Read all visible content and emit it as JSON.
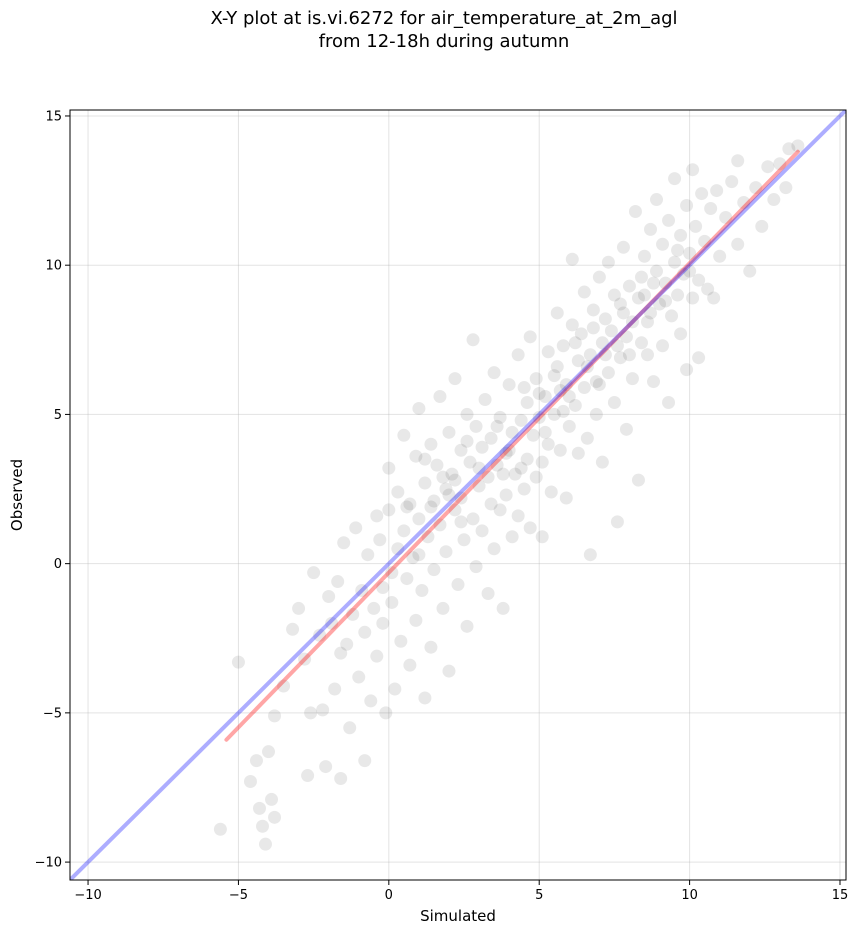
{
  "chart_data": {
    "type": "scatter",
    "title": "X-Y plot at is.vi.6272 for air_temperature_at_2m_agl",
    "subtitle": "from 12-18h during autumn",
    "xlabel": "Simulated",
    "ylabel": "Observed",
    "xlim": [
      -10.6,
      15.2
    ],
    "ylim": [
      -10.6,
      15.2
    ],
    "xticks": [
      -10,
      -5,
      0,
      5,
      10,
      15
    ],
    "yticks": [
      -10,
      -5,
      0,
      5,
      10,
      15
    ],
    "xtick_labels": [
      "−10",
      "−5",
      "0",
      "5",
      "10",
      "15"
    ],
    "ytick_labels": [
      "−10",
      "−5",
      "0",
      "5",
      "10",
      "15"
    ],
    "grid": true,
    "point_color": "#000000",
    "point_opacity": 0.09,
    "fit_line": {
      "color": "#ff0000",
      "x": [
        -5.4,
        13.6
      ],
      "y": [
        -5.9,
        13.8
      ]
    },
    "identity_line": {
      "color": "#0000ff",
      "x": [
        -10.6,
        15.2
      ],
      "y": [
        -10.6,
        15.2
      ]
    },
    "points": [
      [
        -5.6,
        -8.9
      ],
      [
        -5.0,
        -3.3
      ],
      [
        -4.6,
        -7.3
      ],
      [
        -4.4,
        -6.6
      ],
      [
        -4.3,
        -8.2
      ],
      [
        -4.2,
        -8.8
      ],
      [
        -4.1,
        -9.4
      ],
      [
        -4.0,
        -6.3
      ],
      [
        -3.9,
        -7.9
      ],
      [
        -3.8,
        -8.5
      ],
      [
        -3.8,
        -5.1
      ],
      [
        -3.5,
        -4.1
      ],
      [
        -3.2,
        -2.2
      ],
      [
        -3.0,
        -1.5
      ],
      [
        -2.8,
        -3.2
      ],
      [
        -2.7,
        -7.1
      ],
      [
        -2.6,
        -5.0
      ],
      [
        -2.5,
        -0.3
      ],
      [
        -2.3,
        -2.4
      ],
      [
        -2.2,
        -4.9
      ],
      [
        -2.1,
        -6.8
      ],
      [
        -2.0,
        -1.1
      ],
      [
        -1.9,
        -2.0
      ],
      [
        -1.8,
        -4.2
      ],
      [
        -1.7,
        -0.6
      ],
      [
        -1.6,
        -3.0
      ],
      [
        -1.6,
        -7.2
      ],
      [
        -1.5,
        0.7
      ],
      [
        -1.4,
        -2.7
      ],
      [
        -1.3,
        -5.5
      ],
      [
        -1.2,
        -1.7
      ],
      [
        -1.1,
        1.2
      ],
      [
        -1.0,
        -3.8
      ],
      [
        -0.9,
        -0.9
      ],
      [
        -0.8,
        -2.3
      ],
      [
        -0.8,
        -6.6
      ],
      [
        -0.7,
        0.3
      ],
      [
        -0.6,
        -4.6
      ],
      [
        -0.5,
        -1.5
      ],
      [
        -0.4,
        1.6
      ],
      [
        -0.4,
        -3.1
      ],
      [
        -0.3,
        0.8
      ],
      [
        -0.2,
        -0.8
      ],
      [
        -0.2,
        -2.0
      ],
      [
        -0.1,
        -5.0
      ],
      [
        0.0,
        1.8
      ],
      [
        0.0,
        3.2
      ],
      [
        0.1,
        -0.3
      ],
      [
        0.1,
        -1.3
      ],
      [
        0.2,
        -4.2
      ],
      [
        0.3,
        2.4
      ],
      [
        0.3,
        0.5
      ],
      [
        0.4,
        -2.6
      ],
      [
        0.5,
        1.1
      ],
      [
        0.5,
        4.3
      ],
      [
        0.6,
        -0.5
      ],
      [
        0.7,
        -3.4
      ],
      [
        0.7,
        2.0
      ],
      [
        0.8,
        0.2
      ],
      [
        0.9,
        3.6
      ],
      [
        0.9,
        -1.9
      ],
      [
        1.0,
        1.5
      ],
      [
        1.0,
        5.2
      ],
      [
        1.1,
        -0.9
      ],
      [
        1.2,
        2.7
      ],
      [
        1.2,
        -4.5
      ],
      [
        1.3,
        0.9
      ],
      [
        1.4,
        4.0
      ],
      [
        1.4,
        -2.8
      ],
      [
        1.5,
        2.1
      ],
      [
        1.5,
        -0.2
      ],
      [
        1.6,
        3.3
      ],
      [
        1.7,
        1.3
      ],
      [
        1.7,
        5.6
      ],
      [
        1.8,
        -1.5
      ],
      [
        1.9,
        2.5
      ],
      [
        1.9,
        0.4
      ],
      [
        2.0,
        4.4
      ],
      [
        2.0,
        -3.6
      ],
      [
        2.1,
        3.0
      ],
      [
        2.2,
        1.8
      ],
      [
        2.2,
        6.2
      ],
      [
        2.3,
        -0.7
      ],
      [
        2.4,
        3.8
      ],
      [
        2.4,
        2.2
      ],
      [
        2.5,
        0.8
      ],
      [
        2.6,
        5.0
      ],
      [
        2.6,
        -2.1
      ],
      [
        2.7,
        3.4
      ],
      [
        2.8,
        1.5
      ],
      [
        2.8,
        7.5
      ],
      [
        2.9,
        4.6
      ],
      [
        2.9,
        -0.1
      ],
      [
        3.0,
        2.6
      ],
      [
        3.1,
        3.9
      ],
      [
        3.1,
        1.1
      ],
      [
        3.2,
        5.5
      ],
      [
        3.3,
        -1.0
      ],
      [
        3.3,
        2.9
      ],
      [
        3.4,
        4.2
      ],
      [
        3.5,
        0.5
      ],
      [
        3.5,
        6.4
      ],
      [
        3.6,
        3.3
      ],
      [
        3.7,
        1.8
      ],
      [
        3.7,
        4.9
      ],
      [
        3.8,
        -1.5
      ],
      [
        3.9,
        3.7
      ],
      [
        3.9,
        2.3
      ],
      [
        4.0,
        6.0
      ],
      [
        4.1,
        0.9
      ],
      [
        4.1,
        4.4
      ],
      [
        4.2,
        3.0
      ],
      [
        4.3,
        7.0
      ],
      [
        4.3,
        1.6
      ],
      [
        4.4,
        4.8
      ],
      [
        4.5,
        2.5
      ],
      [
        4.5,
        5.9
      ],
      [
        4.6,
        3.5
      ],
      [
        4.7,
        1.2
      ],
      [
        4.7,
        7.6
      ],
      [
        4.8,
        4.3
      ],
      [
        4.9,
        2.9
      ],
      [
        4.9,
        6.2
      ],
      [
        5.0,
        4.9
      ],
      [
        5.1,
        3.4
      ],
      [
        5.1,
        0.9
      ],
      [
        5.2,
        5.6
      ],
      [
        5.3,
        7.1
      ],
      [
        5.3,
        4.0
      ],
      [
        5.4,
        2.4
      ],
      [
        5.5,
        6.3
      ],
      [
        5.5,
        5.0
      ],
      [
        5.6,
        8.4
      ],
      [
        5.7,
        3.8
      ],
      [
        5.7,
        5.8
      ],
      [
        5.8,
        7.3
      ],
      [
        5.9,
        2.2
      ],
      [
        5.9,
        6.0
      ],
      [
        6.0,
        4.6
      ],
      [
        6.1,
        8.0
      ],
      [
        6.1,
        10.2
      ],
      [
        6.2,
        5.3
      ],
      [
        6.3,
        6.8
      ],
      [
        6.3,
        3.7
      ],
      [
        6.4,
        7.7
      ],
      [
        6.5,
        5.9
      ],
      [
        6.5,
        9.1
      ],
      [
        6.6,
        4.2
      ],
      [
        6.7,
        7.0
      ],
      [
        6.7,
        0.3
      ],
      [
        6.8,
        8.5
      ],
      [
        6.9,
        6.1
      ],
      [
        6.9,
        5.0
      ],
      [
        7.0,
        9.6
      ],
      [
        7.1,
        7.4
      ],
      [
        7.1,
        3.4
      ],
      [
        7.2,
        8.2
      ],
      [
        7.3,
        6.4
      ],
      [
        7.3,
        10.1
      ],
      [
        7.4,
        7.8
      ],
      [
        7.5,
        5.4
      ],
      [
        7.5,
        9.0
      ],
      [
        7.6,
        1.4
      ],
      [
        7.7,
        8.7
      ],
      [
        7.7,
        6.9
      ],
      [
        7.8,
        10.6
      ],
      [
        7.9,
        7.6
      ],
      [
        7.9,
        4.5
      ],
      [
        8.0,
        9.3
      ],
      [
        8.1,
        8.1
      ],
      [
        8.1,
        6.2
      ],
      [
        8.2,
        11.8
      ],
      [
        8.3,
        8.9
      ],
      [
        8.3,
        2.8
      ],
      [
        8.4,
        7.4
      ],
      [
        8.5,
        10.3
      ],
      [
        8.5,
        9.0
      ],
      [
        8.6,
        7.0
      ],
      [
        8.7,
        11.2
      ],
      [
        8.7,
        8.4
      ],
      [
        8.8,
        6.1
      ],
      [
        8.9,
        9.8
      ],
      [
        8.9,
        12.2
      ],
      [
        9.0,
        8.7
      ],
      [
        9.1,
        7.3
      ],
      [
        9.1,
        10.7
      ],
      [
        9.2,
        9.4
      ],
      [
        9.3,
        5.4
      ],
      [
        9.3,
        11.5
      ],
      [
        9.4,
        8.3
      ],
      [
        9.5,
        10.1
      ],
      [
        9.5,
        12.9
      ],
      [
        9.6,
        9.0
      ],
      [
        9.7,
        7.7
      ],
      [
        9.7,
        11.0
      ],
      [
        9.8,
        9.7
      ],
      [
        9.9,
        6.5
      ],
      [
        9.9,
        12.0
      ],
      [
        10.0,
        10.4
      ],
      [
        10.1,
        8.9
      ],
      [
        10.1,
        13.2
      ],
      [
        10.2,
        11.3
      ],
      [
        10.3,
        9.5
      ],
      [
        10.3,
        6.9
      ],
      [
        10.4,
        12.4
      ],
      [
        10.5,
        10.8
      ],
      [
        10.6,
        9.2
      ],
      [
        10.7,
        11.9
      ],
      [
        10.8,
        8.9
      ],
      [
        10.9,
        12.5
      ],
      [
        11.0,
        10.3
      ],
      [
        11.2,
        11.6
      ],
      [
        11.4,
        12.8
      ],
      [
        11.6,
        10.7
      ],
      [
        11.6,
        13.5
      ],
      [
        11.8,
        12.1
      ],
      [
        12.0,
        9.8
      ],
      [
        12.2,
        12.6
      ],
      [
        12.4,
        11.3
      ],
      [
        12.6,
        13.3
      ],
      [
        12.8,
        12.2
      ],
      [
        13.0,
        13.4
      ],
      [
        13.2,
        12.6
      ],
      [
        13.3,
        13.9
      ],
      [
        13.6,
        14.0
      ],
      [
        2.4,
        1.4
      ],
      [
        2.6,
        4.1
      ],
      [
        3.0,
        3.2
      ],
      [
        3.4,
        2.0
      ],
      [
        3.6,
        4.6
      ],
      [
        4.0,
        3.8
      ],
      [
        4.4,
        3.2
      ],
      [
        4.6,
        5.4
      ],
      [
        5.0,
        5.7
      ],
      [
        5.2,
        4.4
      ],
      [
        5.6,
        6.6
      ],
      [
        5.8,
        5.1
      ],
      [
        6.0,
        5.6
      ],
      [
        6.2,
        7.4
      ],
      [
        6.6,
        6.6
      ],
      [
        6.8,
        7.9
      ],
      [
        7.0,
        6.0
      ],
      [
        7.2,
        7.0
      ],
      [
        7.6,
        7.3
      ],
      [
        7.8,
        8.4
      ],
      [
        8.0,
        7.0
      ],
      [
        8.4,
        9.6
      ],
      [
        8.6,
        8.1
      ],
      [
        8.8,
        9.4
      ],
      [
        9.2,
        8.8
      ],
      [
        9.6,
        10.5
      ],
      [
        10.0,
        9.8
      ],
      [
        1.4,
        1.9
      ],
      [
        1.8,
        2.9
      ],
      [
        2.2,
        2.8
      ],
      [
        1.0,
        0.3
      ],
      [
        0.6,
        1.9
      ],
      [
        1.2,
        3.5
      ],
      [
        2.0,
        2.3
      ],
      [
        3.8,
        3.0
      ]
    ]
  }
}
